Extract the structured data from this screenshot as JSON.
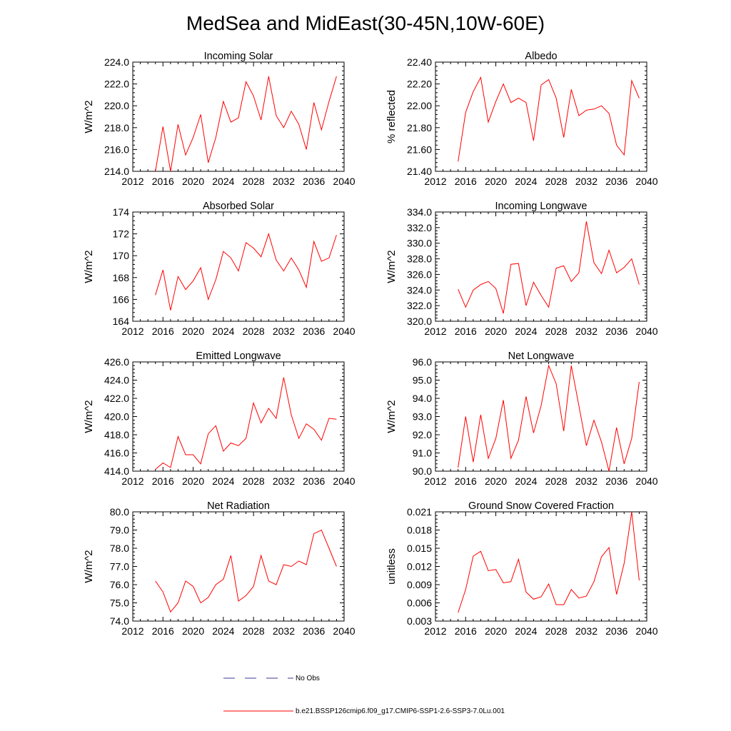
{
  "title": "MedSea and MidEast(30-45N,10W-60E)",
  "legend": {
    "items": [
      {
        "label": "No Obs",
        "color": "#3a3a9a",
        "style": "dashed"
      },
      {
        "label": "b.e21.BSSP126cmip6.f09_g17.CMIP6-SSP1-2.6-SSP3-7.0Lu.001",
        "color": "#ff0000",
        "style": "solid"
      }
    ]
  },
  "chart_data": [
    {
      "type": "line",
      "title": "Incoming Solar",
      "xlabel": "",
      "ylabel": "W/m^2",
      "xlim": [
        2012,
        2040
      ],
      "ylim": [
        214.0,
        224.0
      ],
      "xticks": [
        "2012",
        "2016",
        "2020",
        "2024",
        "2028",
        "2032",
        "2036",
        "2040"
      ],
      "yticks": [
        "214.0",
        "216.0",
        "218.0",
        "220.0",
        "222.0",
        "224.0"
      ],
      "series": [
        {
          "color": "#ff0000",
          "x": [
            2015,
            2016,
            2017,
            2018,
            2019,
            2020,
            2021,
            2022,
            2023,
            2024,
            2025,
            2026,
            2027,
            2028,
            2029,
            2030,
            2031,
            2032,
            2033,
            2034,
            2035,
            2036,
            2037,
            2038,
            2039
          ],
          "values": [
            214.0,
            218.1,
            213.9,
            218.3,
            215.5,
            217.1,
            219.2,
            214.8,
            217.1,
            220.4,
            218.5,
            218.9,
            222.2,
            220.9,
            218.7,
            222.7,
            219.1,
            218.0,
            219.5,
            218.3,
            216.0,
            220.3,
            217.8,
            220.4,
            222.7
          ]
        }
      ]
    },
    {
      "type": "line",
      "title": "Albedo",
      "xlabel": "",
      "ylabel": "% reflected",
      "xlim": [
        2012,
        2040
      ],
      "ylim": [
        21.4,
        22.4
      ],
      "xticks": [
        "2012",
        "2016",
        "2020",
        "2024",
        "2028",
        "2032",
        "2036",
        "2040"
      ],
      "yticks": [
        "21.40",
        "21.60",
        "21.80",
        "22.00",
        "22.20",
        "22.40"
      ],
      "series": [
        {
          "color": "#ff0000",
          "x": [
            2015,
            2016,
            2017,
            2018,
            2019,
            2020,
            2021,
            2022,
            2023,
            2024,
            2025,
            2026,
            2027,
            2028,
            2029,
            2030,
            2031,
            2032,
            2033,
            2034,
            2035,
            2036,
            2037,
            2038,
            2039
          ],
          "values": [
            21.49,
            21.94,
            22.13,
            22.26,
            21.85,
            22.04,
            22.2,
            22.03,
            22.07,
            22.03,
            21.68,
            22.19,
            22.24,
            22.07,
            21.71,
            22.15,
            21.91,
            21.96,
            21.97,
            22.0,
            21.93,
            21.64,
            21.55,
            22.23,
            22.07
          ]
        }
      ]
    },
    {
      "type": "line",
      "title": "Absorbed Solar",
      "xlabel": "",
      "ylabel": "W/m^2",
      "xlim": [
        2012,
        2040
      ],
      "ylim": [
        164,
        174
      ],
      "xticks": [
        "2012",
        "2016",
        "2020",
        "2024",
        "2028",
        "2032",
        "2036",
        "2040"
      ],
      "yticks": [
        "164",
        "166",
        "168",
        "170",
        "172",
        "174"
      ],
      "series": [
        {
          "color": "#ff0000",
          "x": [
            2015,
            2016,
            2017,
            2018,
            2019,
            2020,
            2021,
            2022,
            2023,
            2024,
            2025,
            2026,
            2027,
            2028,
            2029,
            2030,
            2031,
            2032,
            2033,
            2034,
            2035,
            2036,
            2037,
            2038,
            2039
          ],
          "values": [
            166.4,
            168.7,
            165.0,
            168.1,
            166.9,
            167.7,
            168.9,
            166.0,
            167.8,
            170.4,
            169.8,
            168.6,
            171.2,
            170.7,
            169.9,
            172.0,
            169.6,
            168.6,
            169.8,
            168.7,
            167.1,
            171.3,
            169.5,
            169.8,
            171.9
          ]
        }
      ]
    },
    {
      "type": "line",
      "title": "Incoming Longwave",
      "xlabel": "",
      "ylabel": "W/m^2",
      "xlim": [
        2012,
        2040
      ],
      "ylim": [
        320.0,
        334.0
      ],
      "xticks": [
        "2012",
        "2016",
        "2020",
        "2024",
        "2028",
        "2032",
        "2036",
        "2040"
      ],
      "yticks": [
        "320.0",
        "322.0",
        "324.0",
        "326.0",
        "328.0",
        "330.0",
        "332.0",
        "334.0"
      ],
      "series": [
        {
          "color": "#ff0000",
          "x": [
            2015,
            2016,
            2017,
            2018,
            2019,
            2020,
            2021,
            2022,
            2023,
            2024,
            2025,
            2026,
            2027,
            2028,
            2029,
            2030,
            2031,
            2032,
            2033,
            2034,
            2035,
            2036,
            2037,
            2038,
            2039
          ],
          "values": [
            324.1,
            321.8,
            324.0,
            324.7,
            325.1,
            324.2,
            321.0,
            327.3,
            327.4,
            322.0,
            325.0,
            323.3,
            321.8,
            326.8,
            327.1,
            325.1,
            326.2,
            332.8,
            327.5,
            326.1,
            329.1,
            326.2,
            326.9,
            328.0,
            324.7
          ]
        }
      ]
    },
    {
      "type": "line",
      "title": "Emitted Longwave",
      "xlabel": "",
      "ylabel": "W/m^2",
      "xlim": [
        2012,
        2040
      ],
      "ylim": [
        414.0,
        426.0
      ],
      "xticks": [
        "2012",
        "2016",
        "2020",
        "2024",
        "2028",
        "2032",
        "2036",
        "2040"
      ],
      "yticks": [
        "414.0",
        "416.0",
        "418.0",
        "420.0",
        "422.0",
        "424.0",
        "426.0"
      ],
      "series": [
        {
          "color": "#ff0000",
          "x": [
            2015,
            2016,
            2017,
            2018,
            2019,
            2020,
            2021,
            2022,
            2023,
            2024,
            2025,
            2026,
            2027,
            2028,
            2029,
            2030,
            2031,
            2032,
            2033,
            2034,
            2035,
            2036,
            2037,
            2038,
            2039
          ],
          "values": [
            414.2,
            414.9,
            414.4,
            417.8,
            415.8,
            415.8,
            414.8,
            418.1,
            419.0,
            416.2,
            417.1,
            416.8,
            417.6,
            421.5,
            419.3,
            420.9,
            419.8,
            424.3,
            420.2,
            417.6,
            419.2,
            418.6,
            417.4,
            419.8,
            419.7
          ]
        }
      ]
    },
    {
      "type": "line",
      "title": "Net Longwave",
      "xlabel": "",
      "ylabel": "W/m^2",
      "xlim": [
        2012,
        2040
      ],
      "ylim": [
        90.0,
        96.0
      ],
      "xticks": [
        "2012",
        "2016",
        "2020",
        "2024",
        "2028",
        "2032",
        "2036",
        "2040"
      ],
      "yticks": [
        "90.0",
        "91.0",
        "92.0",
        "93.0",
        "94.0",
        "95.0",
        "96.0"
      ],
      "series": [
        {
          "color": "#ff0000",
          "x": [
            2015,
            2016,
            2017,
            2018,
            2019,
            2020,
            2021,
            2022,
            2023,
            2024,
            2025,
            2026,
            2027,
            2028,
            2029,
            2030,
            2031,
            2032,
            2033,
            2034,
            2035,
            2036,
            2037,
            2038,
            2039
          ],
          "values": [
            90.2,
            93.0,
            90.5,
            93.1,
            90.7,
            91.8,
            93.9,
            90.7,
            91.7,
            94.1,
            92.1,
            93.6,
            95.8,
            94.8,
            92.2,
            95.8,
            93.6,
            91.4,
            92.8,
            91.6,
            90.0,
            92.4,
            90.4,
            91.8,
            94.9
          ]
        }
      ]
    },
    {
      "type": "line",
      "title": "Net Radiation",
      "xlabel": "",
      "ylabel": "W/m^2",
      "xlim": [
        2012,
        2040
      ],
      "ylim": [
        74.0,
        80.0
      ],
      "xticks": [
        "2012",
        "2016",
        "2020",
        "2024",
        "2028",
        "2032",
        "2036",
        "2040"
      ],
      "yticks": [
        "74.0",
        "75.0",
        "76.0",
        "77.0",
        "78.0",
        "79.0",
        "80.0"
      ],
      "series": [
        {
          "color": "#ff0000",
          "x": [
            2015,
            2016,
            2017,
            2018,
            2019,
            2020,
            2021,
            2022,
            2023,
            2024,
            2025,
            2026,
            2027,
            2028,
            2029,
            2030,
            2031,
            2032,
            2033,
            2034,
            2035,
            2036,
            2037,
            2038,
            2039
          ],
          "values": [
            76.2,
            75.6,
            74.5,
            75.0,
            76.2,
            75.9,
            75.0,
            75.3,
            76.0,
            76.3,
            77.6,
            75.1,
            75.4,
            75.9,
            77.6,
            76.2,
            76.0,
            77.1,
            77.0,
            77.3,
            77.1,
            78.8,
            79.0,
            78.0,
            77.0
          ]
        }
      ]
    },
    {
      "type": "line",
      "title": "Ground Snow Covered Fraction",
      "xlabel": "",
      "ylabel": "unitless",
      "xlim": [
        2012,
        2040
      ],
      "ylim": [
        0.003,
        0.021
      ],
      "xticks": [
        "2012",
        "2016",
        "2020",
        "2024",
        "2028",
        "2032",
        "2036",
        "2040"
      ],
      "yticks": [
        "0.003",
        "0.006",
        "0.009",
        "0.012",
        "0.015",
        "0.018",
        "0.021"
      ],
      "series": [
        {
          "color": "#ff0000",
          "x": [
            2015,
            2016,
            2017,
            2018,
            2019,
            2020,
            2021,
            2022,
            2023,
            2024,
            2025,
            2026,
            2027,
            2028,
            2029,
            2030,
            2031,
            2032,
            2033,
            2034,
            2035,
            2036,
            2037,
            2038,
            2039
          ],
          "values": [
            0.0044,
            0.0082,
            0.0137,
            0.0145,
            0.0113,
            0.0115,
            0.0093,
            0.0095,
            0.0132,
            0.0078,
            0.0066,
            0.007,
            0.0091,
            0.0057,
            0.0057,
            0.0082,
            0.0068,
            0.0071,
            0.0095,
            0.0136,
            0.0151,
            0.0074,
            0.0125,
            0.021,
            0.0097
          ]
        }
      ]
    }
  ]
}
